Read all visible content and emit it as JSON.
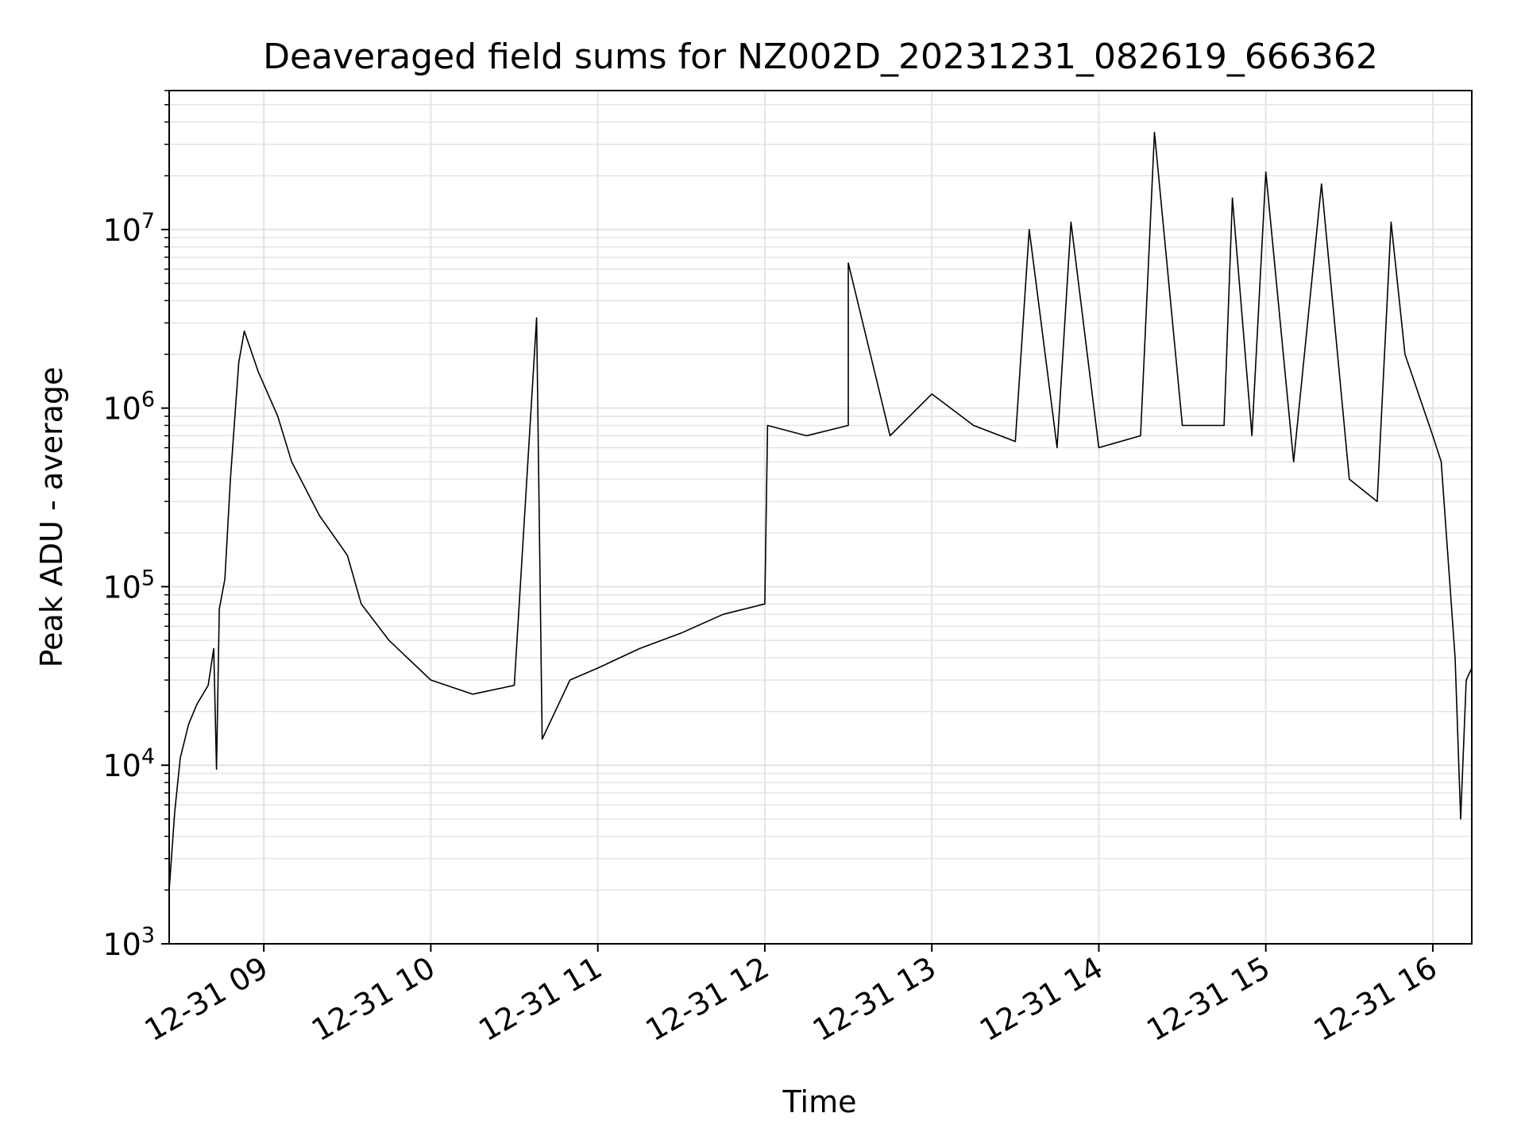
{
  "chart_data": {
    "type": "line",
    "title": "Deaveraged field sums for NZ002D_20231231_082619_666362",
    "xlabel": "Time",
    "ylabel": "Peak ADU - average",
    "y_scale": "log",
    "ylim": [
      1000,
      60000000
    ],
    "xlim": [
      "12-31 08:26",
      "12-31 16:14"
    ],
    "x_ticks": [
      "12-31 09",
      "12-31 10",
      "12-31 11",
      "12-31 12",
      "12-31 13",
      "12-31 14",
      "12-31 15",
      "12-31 16"
    ],
    "y_ticks": [
      {
        "base": "10",
        "exp": "3"
      },
      {
        "base": "10",
        "exp": "4"
      },
      {
        "base": "10",
        "exp": "5"
      },
      {
        "base": "10",
        "exp": "6"
      },
      {
        "base": "10",
        "exp": "7"
      }
    ],
    "grid": true,
    "line_color": "#000000",
    "grid_color": "#e4e4e4",
    "series": [
      {
        "values": [
          [
            "12-31 08:26",
            2000
          ],
          [
            "12-31 08:28",
            5500
          ],
          [
            "12-31 08:30",
            11000
          ],
          [
            "12-31 08:33",
            17000
          ],
          [
            "12-31 08:36",
            22000
          ],
          [
            "12-31 08:40",
            28000
          ],
          [
            "12-31 08:42",
            45000
          ],
          [
            "12-31 08:43",
            9500
          ],
          [
            "12-31 08:44",
            75000
          ],
          [
            "12-31 08:46",
            110000
          ],
          [
            "12-31 08:48",
            400000
          ],
          [
            "12-31 08:51",
            1800000
          ],
          [
            "12-31 08:53",
            2700000
          ],
          [
            "12-31 08:58",
            1600000
          ],
          [
            "12-31 09:05",
            900000
          ],
          [
            "12-31 09:10",
            500000
          ],
          [
            "12-31 09:20",
            250000
          ],
          [
            "12-31 09:30",
            150000
          ],
          [
            "12-31 09:35",
            80000
          ],
          [
            "12-31 09:45",
            50000
          ],
          [
            "12-31 10:00",
            30000
          ],
          [
            "12-31 10:15",
            25000
          ],
          [
            "12-31 10:30",
            28000
          ],
          [
            "12-31 10:38",
            3200000
          ],
          [
            "12-31 10:40",
            14000
          ],
          [
            "12-31 10:50",
            30000
          ],
          [
            "12-31 11:00",
            35000
          ],
          [
            "12-31 11:15",
            45000
          ],
          [
            "12-31 11:30",
            55000
          ],
          [
            "12-31 11:45",
            70000
          ],
          [
            "12-31 12:00",
            80000
          ],
          [
            "12-31 12:01",
            800000
          ],
          [
            "12-31 12:15",
            700000
          ],
          [
            "12-31 12:30",
            800000
          ],
          [
            "12-31 12:30",
            6500000
          ],
          [
            "12-31 12:45",
            700000
          ],
          [
            "12-31 13:00",
            1200000
          ],
          [
            "12-31 13:15",
            800000
          ],
          [
            "12-31 13:30",
            650000
          ],
          [
            "12-31 13:35",
            10000000
          ],
          [
            "12-31 13:45",
            600000
          ],
          [
            "12-31 13:50",
            11000000
          ],
          [
            "12-31 14:00",
            600000
          ],
          [
            "12-31 14:15",
            700000
          ],
          [
            "12-31 14:20",
            35000000
          ],
          [
            "12-31 14:30",
            800000
          ],
          [
            "12-31 14:45",
            800000
          ],
          [
            "12-31 14:48",
            15000000
          ],
          [
            "12-31 14:55",
            700000
          ],
          [
            "12-31 15:00",
            21000000
          ],
          [
            "12-31 15:10",
            500000
          ],
          [
            "12-31 15:20",
            18000000
          ],
          [
            "12-31 15:30",
            400000
          ],
          [
            "12-31 15:40",
            300000
          ],
          [
            "12-31 15:45",
            11000000
          ],
          [
            "12-31 15:50",
            2000000
          ],
          [
            "12-31 16:00",
            700000
          ],
          [
            "12-31 16:03",
            500000
          ],
          [
            "12-31 16:08",
            40000
          ],
          [
            "12-31 16:10",
            5000
          ],
          [
            "12-31 16:12",
            30000
          ],
          [
            "12-31 16:14",
            35000
          ]
        ]
      }
    ]
  }
}
